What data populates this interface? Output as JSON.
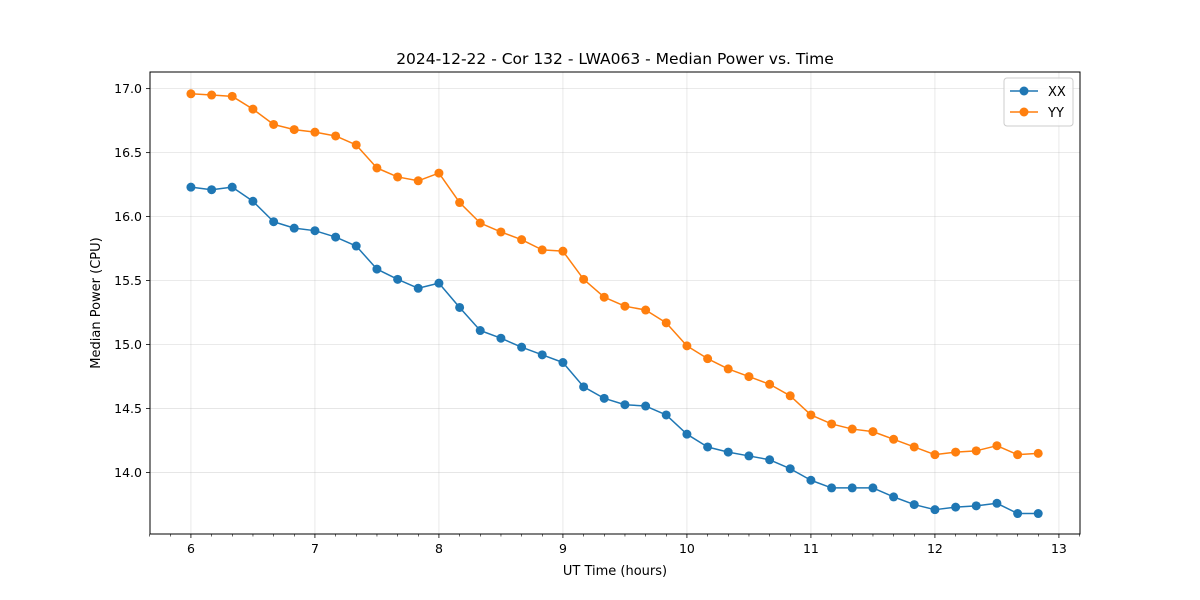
{
  "chart_data": {
    "type": "line",
    "title": "2024-12-22 - Cor 132 - LWA063 - Median Power vs. Time",
    "xlabel": "UT Time (hours)",
    "ylabel": "Median Power (CPU)",
    "xlim": [
      5.67,
      13.17
    ],
    "ylim": [
      13.52,
      17.13
    ],
    "xticks": [
      6,
      7,
      8,
      9,
      10,
      11,
      12,
      13
    ],
    "yticks": [
      14.0,
      14.5,
      15.0,
      15.5,
      16.0,
      16.5,
      17.0
    ],
    "ytick_labels": [
      "14.0",
      "14.5",
      "15.0",
      "15.5",
      "16.0",
      "16.5",
      "17.0"
    ],
    "grid": true,
    "legend_position": "top-right",
    "x": [
      6.0,
      6.167,
      6.333,
      6.5,
      6.667,
      6.833,
      7.0,
      7.167,
      7.333,
      7.5,
      7.667,
      7.833,
      8.0,
      8.167,
      8.333,
      8.5,
      8.667,
      8.833,
      9.0,
      9.167,
      9.333,
      9.5,
      9.667,
      9.833,
      10.0,
      10.167,
      10.333,
      10.5,
      10.667,
      10.833,
      11.0,
      11.167,
      11.333,
      11.5,
      11.667,
      11.833,
      12.0,
      12.167,
      12.333,
      12.5,
      12.667,
      12.833
    ],
    "series": [
      {
        "name": "XX",
        "color": "#1f77b4",
        "values": [
          16.23,
          16.21,
          16.23,
          16.12,
          15.96,
          15.91,
          15.89,
          15.84,
          15.77,
          15.59,
          15.51,
          15.44,
          15.48,
          15.29,
          15.11,
          15.05,
          14.98,
          14.92,
          14.86,
          14.67,
          14.58,
          14.53,
          14.52,
          14.45,
          14.3,
          14.2,
          14.16,
          14.13,
          14.1,
          14.03,
          13.94,
          13.88,
          13.88,
          13.88,
          13.81,
          13.75,
          13.71,
          13.73,
          13.74,
          13.76,
          13.68,
          13.68
        ]
      },
      {
        "name": "YY",
        "color": "#ff7f0e",
        "values": [
          16.96,
          16.95,
          16.94,
          16.84,
          16.72,
          16.68,
          16.66,
          16.63,
          16.56,
          16.38,
          16.31,
          16.28,
          16.34,
          16.11,
          15.95,
          15.88,
          15.82,
          15.74,
          15.73,
          15.51,
          15.37,
          15.3,
          15.27,
          15.17,
          14.99,
          14.89,
          14.81,
          14.75,
          14.69,
          14.6,
          14.45,
          14.38,
          14.34,
          14.32,
          14.26,
          14.2,
          14.14,
          14.16,
          14.17,
          14.21,
          14.14,
          14.15
        ]
      }
    ]
  }
}
